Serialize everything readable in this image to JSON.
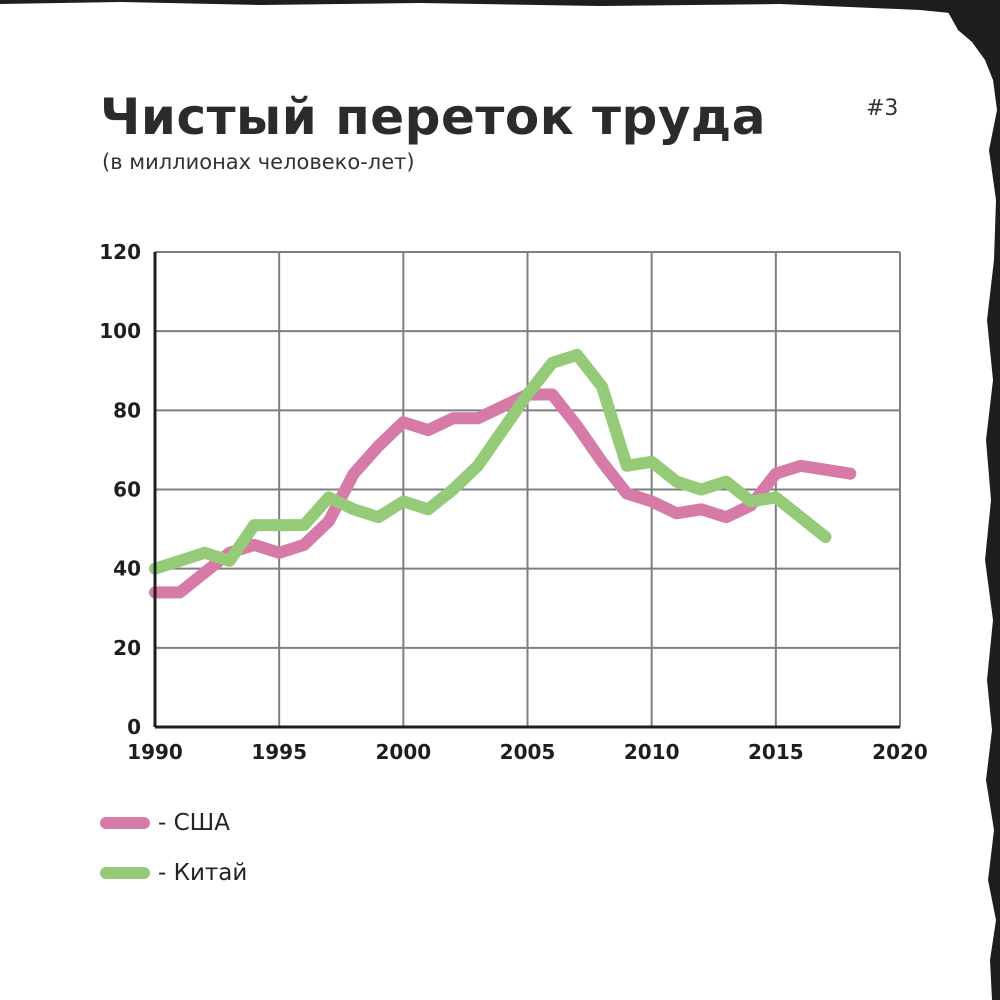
{
  "header": {
    "title": "Чистый переток труда",
    "subtitle": "(в миллионах человеко-лет)",
    "page_number": "#3"
  },
  "legend": [
    {
      "label": "- США",
      "color": "#d67aa8"
    },
    {
      "label": "- Китай",
      "color": "#95ca78"
    }
  ],
  "chart_data": {
    "type": "line",
    "title": "Чистый переток труда",
    "subtitle": "(в миллионах человеко-лет)",
    "xlim": [
      1990,
      2020
    ],
    "ylim": [
      0,
      120
    ],
    "x_ticks": [
      "1990",
      "1995",
      "2000",
      "2005",
      "2010",
      "2015",
      "2020"
    ],
    "y_ticks": [
      "0",
      "20",
      "40",
      "60",
      "80",
      "100",
      "120"
    ],
    "grid": true,
    "legend_position": "bottom-left",
    "series": [
      {
        "name": "США",
        "color": "#d67aa8",
        "x": [
          1990,
          1991,
          1992,
          1993,
          1994,
          1995,
          1996,
          1997,
          1998,
          1999,
          2000,
          2001,
          2002,
          2003,
          2004,
          2005,
          2006,
          2007,
          2008,
          2009,
          2010,
          2011,
          2012,
          2013,
          2014,
          2015,
          2016,
          2017,
          2018
        ],
        "y": [
          34,
          34,
          39,
          44,
          46,
          44,
          46,
          52,
          64,
          71,
          77,
          75,
          78,
          78,
          81,
          84,
          84,
          76,
          67,
          59,
          57,
          54,
          55,
          53,
          56,
          64,
          66,
          65,
          64
        ]
      },
      {
        "name": "Китай",
        "color": "#95ca78",
        "x": [
          1990,
          1991,
          1992,
          1993,
          1994,
          1995,
          1996,
          1997,
          1998,
          1999,
          2000,
          2001,
          2002,
          2003,
          2004,
          2005,
          2006,
          2007,
          2008,
          2009,
          2010,
          2011,
          2012,
          2013,
          2014,
          2015,
          2016,
          2017,
          2018
        ],
        "y": [
          40,
          42,
          44,
          42,
          51,
          51,
          51,
          58,
          55,
          53,
          57,
          55,
          60,
          66,
          75,
          84,
          92,
          94,
          86,
          66,
          67,
          62,
          60,
          62,
          57,
          58,
          53,
          48,
          null
        ]
      }
    ]
  }
}
